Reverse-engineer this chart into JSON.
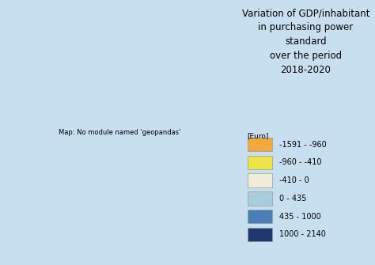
{
  "title_lines": [
    "Variation of GDP/inhabitant",
    "in purchasing power",
    "standard",
    "over the period",
    "2018-2020"
  ],
  "legend_header": "[Euro]",
  "legend_colors": [
    "#F2A93B",
    "#EDE44A",
    "#F0EDD8",
    "#A8CEDE",
    "#4A7FB5",
    "#1B3A6B"
  ],
  "legend_labels": [
    "-1591 - -960",
    "-960 - -410",
    "-410 - 0",
    "0 - 435",
    "435 - 1000",
    "1000 - 2140"
  ],
  "sea_color": "#B8D9E8",
  "land_color": "#D4C5A9",
  "fig_bg": "#C8DFF0",
  "border_color": "#777777",
  "non_eu_land": "#D4C5A9",
  "title_fontsize": 8.5,
  "legend_fontsize": 7,
  "country_colors": {
    "Finland": "#EDE44A",
    "Sweden": "#F0EDD8",
    "Norway": "#F0EDD8",
    "Denmark": "#A8CEDE",
    "Estonia": "#4A7FB5",
    "Latvia": "#4A7FB5",
    "Lithuania": "#4A7FB5",
    "Poland": "#4A7FB5",
    "Czechia": "#1B3A6B",
    "Slovakia": "#4A7FB5",
    "Hungary": "#4A7FB5",
    "Romania": "#4A7FB5",
    "Bulgaria": "#4A7FB5",
    "Greece": "#A8CEDE",
    "Italy": "#F2A93B",
    "Slovenia": "#1B3A6B",
    "Croatia": "#4A7FB5",
    "Austria": "#1B3A6B",
    "Germany": "#1B3A6B",
    "Netherlands": "#1B3A6B",
    "Belgium": "#1B3A6B",
    "Luxembourg": "#1B3A6B",
    "France": "#F0EDD8",
    "Spain": "#A8CEDE",
    "Portugal": "#A8CEDE",
    "Ireland": "#1B3A6B",
    "United Kingdom": "#F0EDD8",
    "Malta": "#F2A93B",
    "Cyprus": "#A8CEDE",
    "Iceland": "#F0EDD8",
    "Switzerland": "#1B3A6B",
    "Serbia": "#A8CEDE",
    "North Macedonia": "#A8CEDE",
    "Albania": "#A8CEDE",
    "Montenegro": "#A8CEDE",
    "Bosnia and Herzegovina": "#A8CEDE"
  }
}
